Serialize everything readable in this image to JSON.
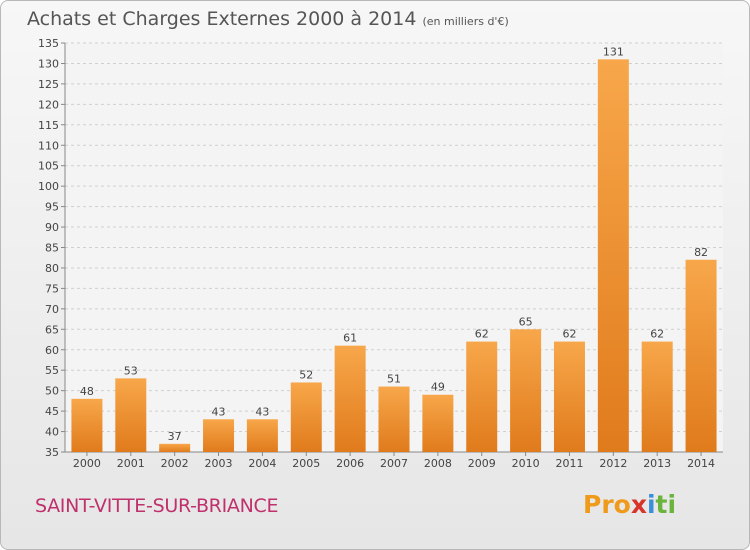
{
  "chart_data": {
    "type": "bar",
    "title": "Achats et Charges Externes 2000 à 2014",
    "subtitle": "(en milliers d'€)",
    "categories": [
      "2000",
      "2001",
      "2002",
      "2003",
      "2004",
      "2005",
      "2006",
      "2007",
      "2008",
      "2009",
      "2010",
      "2011",
      "2012",
      "2013",
      "2014"
    ],
    "values": [
      48,
      53,
      37,
      43,
      43,
      52,
      61,
      51,
      49,
      62,
      65,
      62,
      131,
      62,
      82
    ],
    "ylim": [
      35,
      135
    ],
    "yticks": [
      35,
      40,
      45,
      50,
      55,
      60,
      65,
      70,
      75,
      80,
      85,
      90,
      95,
      100,
      105,
      110,
      115,
      120,
      125,
      130,
      135
    ],
    "grid": true,
    "bar_color": "#f0962e"
  },
  "location": "SAINT-VITTE-SUR-BRIANCE",
  "logo": {
    "parts": [
      "Pro",
      "x",
      "i",
      "ti"
    ],
    "colors": [
      "#f09a1c",
      "#d8352a",
      "#3a8fd8",
      "#6ab43c"
    ]
  }
}
